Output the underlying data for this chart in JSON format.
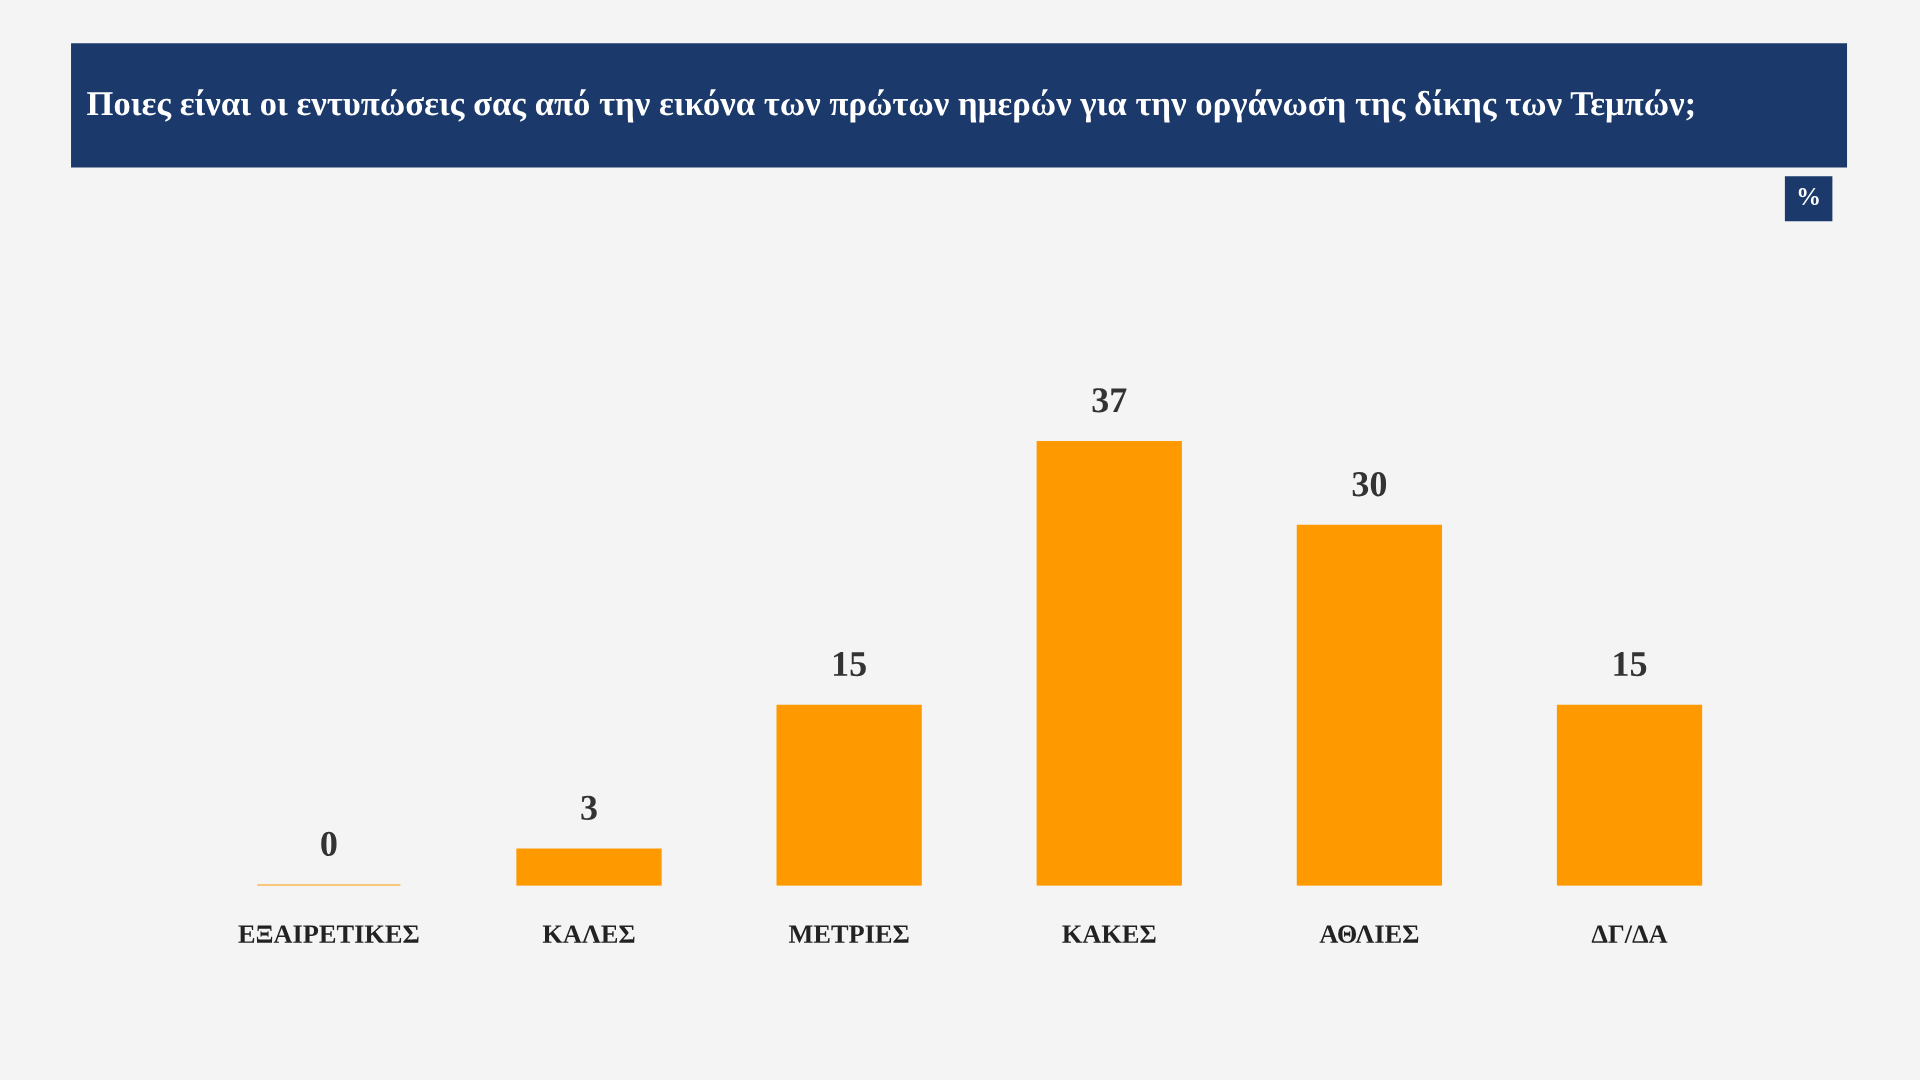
{
  "chart_data": {
    "type": "bar",
    "title": "Ποιες είναι οι εντυπώσεις σας από την εικόνα των πρώτων ημερών για την οργάνωση της δίκης των Τεμπών;",
    "categories": [
      "ΕΞΑΙΡΕΤΙΚΕΣ",
      "ΚΑΛΕΣ",
      "ΜΕΤΡΙΕΣ",
      "ΚΑΚΕΣ",
      "ΑΘΛΙΕΣ",
      "ΔΓ/ΔΑ"
    ],
    "values": [
      0,
      3,
      15,
      37,
      30,
      15
    ],
    "color": "#ff9900",
    "data_labels": true,
    "annotations": [
      "%"
    ]
  }
}
